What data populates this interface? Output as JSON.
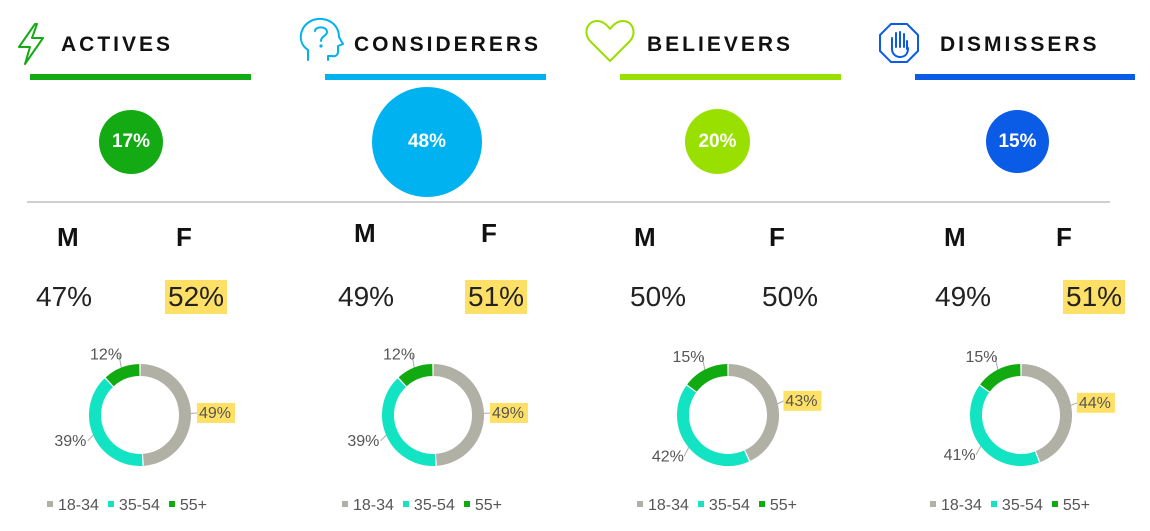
{
  "colors": {
    "age_18_34": "#b0b0a4",
    "age_35_54": "#12e3c2",
    "age_55_plus": "#11aa11",
    "highlight": "#ffe066"
  },
  "gender_labels": {
    "male": "M",
    "female": "F"
  },
  "segments": [
    {
      "title": "ACTIVES",
      "icon": "lightning-icon",
      "color": "#13aa13",
      "share": "17%"
    },
    {
      "title": "CONSIDERERS",
      "icon": "head-question-icon",
      "color": "#00b3f0",
      "share": "48%"
    },
    {
      "title": "BELIEVERS",
      "icon": "heart-icon",
      "color": "#99e000",
      "share": "20%"
    },
    {
      "title": "DISMISSERS",
      "icon": "stop-hand-icon",
      "color": "#0a5ce6",
      "share": "15%"
    }
  ],
  "chart_data": [
    {
      "type": "pie",
      "categories": [
        "18-34",
        "35-54",
        "55+"
      ],
      "values": [
        49,
        39,
        12
      ],
      "labels": [
        "49%",
        "39%",
        "12%"
      ],
      "gender": {
        "M": "47%",
        "F": "52%"
      },
      "highlight": [
        "F",
        "18-34"
      ]
    },
    {
      "type": "pie",
      "categories": [
        "18-34",
        "35-54",
        "55+"
      ],
      "values": [
        49,
        39,
        12
      ],
      "labels": [
        "49%",
        "39%",
        "12%"
      ],
      "gender": {
        "M": "49%",
        "F": "51%"
      },
      "highlight": [
        "F",
        "18-34"
      ]
    },
    {
      "type": "pie",
      "categories": [
        "18-34",
        "35-54",
        "55+"
      ],
      "values": [
        43,
        42,
        15
      ],
      "labels": [
        "43%",
        "42%",
        "15%"
      ],
      "gender": {
        "M": "50%",
        "F": "50%"
      },
      "highlight": [
        "18-34"
      ]
    },
    {
      "type": "pie",
      "categories": [
        "18-34",
        "35-54",
        "55+"
      ],
      "values": [
        44,
        41,
        15
      ],
      "labels": [
        "44%",
        "41%",
        "15%"
      ],
      "gender": {
        "M": "49%",
        "F": "51%"
      },
      "highlight": [
        "F",
        "18-34"
      ]
    }
  ]
}
